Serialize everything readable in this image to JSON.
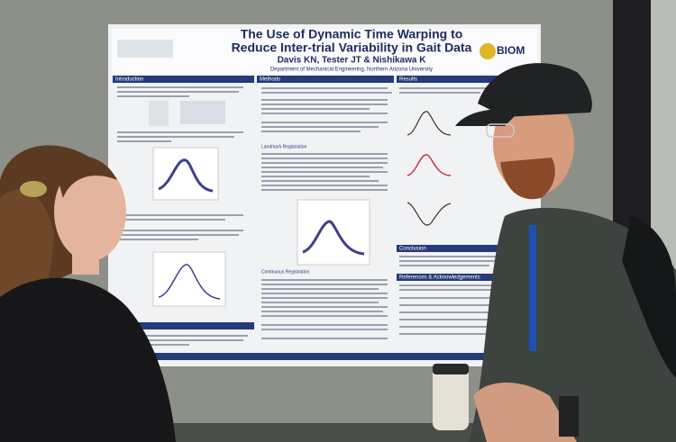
{
  "poster": {
    "title": [
      "The Use of Dynamic Time Warping to",
      "Reduce Inter-trial Variability in Gait Data"
    ],
    "authors": "Davis KN, Tester JT & Nishikawa K",
    "department": "Department of Mechanical Engineering, Northern Arizona University",
    "logo": "BIOM",
    "sections": {
      "introduction": "Introduction",
      "methods": "Methods",
      "landmark": "Landmark Registration",
      "continuous": "Continuous Registration",
      "results": "Results",
      "conclusion": "Conclusion",
      "references": "References & Acknowledgements"
    }
  }
}
